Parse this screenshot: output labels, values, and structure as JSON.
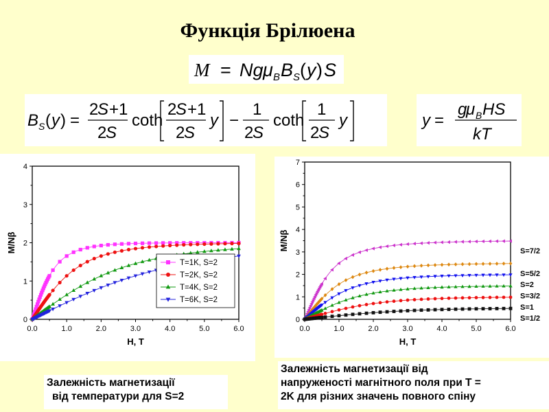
{
  "slide": {
    "title": "Функція Брілюена",
    "caption_left": [
      "Залежність магнетизації",
      "від температури для S=2"
    ],
    "caption_right": [
      "Залежність магнетизації від",
      "напруженості магнітного поля при T =",
      "2K для різних значень  повного спіну"
    ]
  },
  "formulas": {
    "magnetization": "M = NgμBBS(y)S",
    "brillouin": "BS(y) = (2S+1)/(2S) coth[(2S+1)/(2S) y] − 1/(2S) coth[1/(2S) y]",
    "y_def": "y = gμBHS/kT"
  },
  "chart_data": [
    {
      "type": "scatter",
      "xlabel": "H, T",
      "ylabel": "M/Nβ",
      "xlim": [
        0,
        6
      ],
      "ylim": [
        0,
        4
      ],
      "xticks": [
        "0.0",
        "1.0",
        "2.0",
        "3.0",
        "4.0",
        "5.0",
        "6.0"
      ],
      "yticks": [
        "0",
        "1",
        "2",
        "3",
        "4"
      ],
      "legend": "bottom-right",
      "series": [
        {
          "name": "T=1K, S=2",
          "T": 1,
          "S": 2,
          "color": "#FF33FF",
          "marker": "square"
        },
        {
          "name": "T=2K, S=2",
          "T": 2,
          "S": 2,
          "color": "#EE1111",
          "marker": "circle"
        },
        {
          "name": "T=4K, S=2",
          "T": 4,
          "S": 2,
          "color": "#119911",
          "marker": "triangle-up"
        },
        {
          "name": "T=6K, S=2",
          "T": 6,
          "S": 2,
          "color": "#2222DD",
          "marker": "triangle-down"
        }
      ]
    },
    {
      "type": "scatter",
      "xlabel": "H, T",
      "ylabel": "M/Nβ",
      "xlim": [
        0,
        6
      ],
      "ylim": [
        0,
        7
      ],
      "xticks": [
        "0.0",
        "1.0",
        "2.0",
        "3.0",
        "4.0",
        "5.0",
        "6.0"
      ],
      "yticks": [
        "0",
        "1",
        "2",
        "3",
        "4",
        "5",
        "6",
        "7"
      ],
      "series": [
        {
          "name": "S=7/2",
          "T": 2,
          "S": 3.5,
          "color": "#CC33CC",
          "marker": "triangle-left"
        },
        {
          "name": "S=5/2",
          "T": 2,
          "S": 2.5,
          "color": "#DD8811",
          "marker": "diamond"
        },
        {
          "name": "S=2",
          "T": 2,
          "S": 2,
          "color": "#1111EE",
          "marker": "triangle-down"
        },
        {
          "name": "S=3/2",
          "T": 2,
          "S": 1.5,
          "color": "#119911",
          "marker": "triangle-up"
        },
        {
          "name": "S=1",
          "T": 2,
          "S": 1,
          "color": "#EE1111",
          "marker": "circle"
        },
        {
          "name": "S=1/2",
          "T": 2,
          "S": 0.5,
          "color": "#111111",
          "marker": "square"
        }
      ]
    }
  ]
}
